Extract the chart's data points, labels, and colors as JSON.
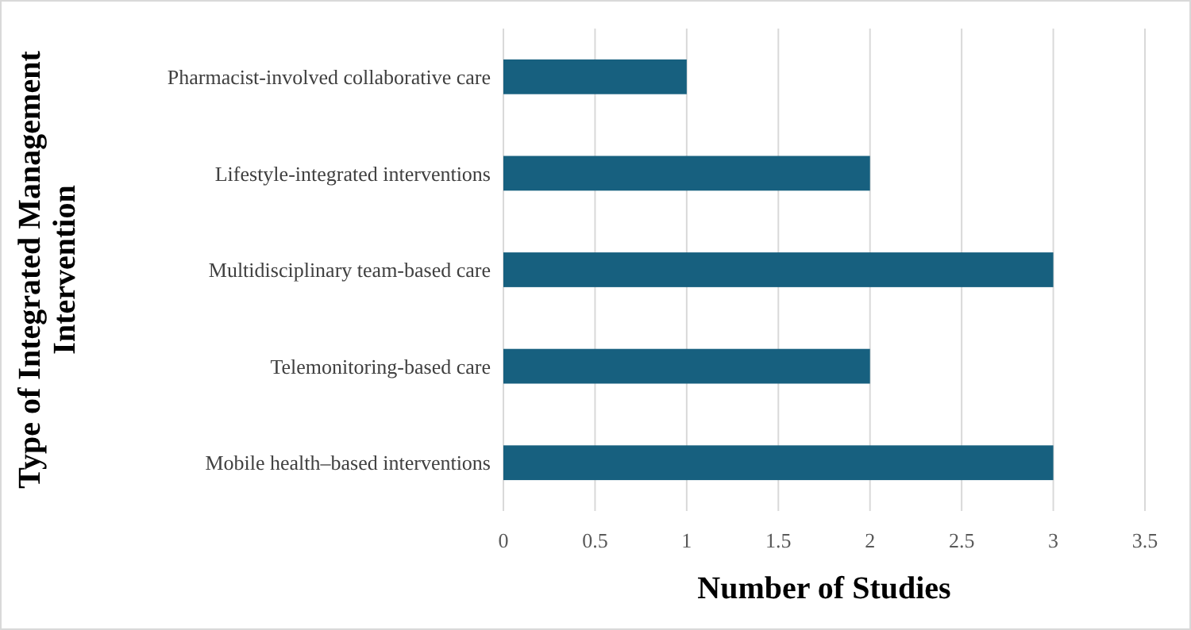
{
  "chart_data": {
    "type": "bar",
    "orientation": "horizontal",
    "categories": [
      "Pharmacist-involved collaborative care",
      "Lifestyle-integrated interventions",
      "Multidisciplinary team-based care",
      "Telemonitoring-based care",
      "Mobile health–based interventions"
    ],
    "values": [
      1,
      2,
      3,
      2,
      3
    ],
    "color": "#17607f",
    "xlim": [
      0,
      3.5
    ],
    "xticks": [
      0,
      0.5,
      1,
      1.5,
      2,
      2.5,
      3,
      3.5
    ],
    "xlabel": "Number of Studies",
    "ylabel": "Type of Integrated Management Intervention",
    "grid": "x"
  }
}
